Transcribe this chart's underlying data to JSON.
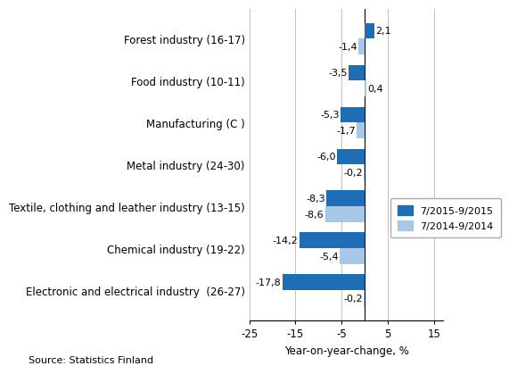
{
  "categories": [
    "Electronic and electrical industry  (26-27)",
    "Chemical industry (19-22)",
    "Textile, clothing and leather industry (13-15)",
    "Metal industry (24-30)",
    "Manufacturing (C )",
    "Food industry (10-11)",
    "Forest industry (16-17)"
  ],
  "series_2015": [
    -17.8,
    -14.2,
    -8.3,
    -6.0,
    -5.3,
    -3.5,
    2.1
  ],
  "series_2014": [
    -0.2,
    -5.4,
    -8.6,
    -0.2,
    -1.7,
    0.4,
    -1.4
  ],
  "labels_2015": [
    "-17,8",
    "-14,2",
    "-8,3",
    "-6,0",
    "-5,3",
    "-3,5",
    "2,1"
  ],
  "labels_2014": [
    "-0,2",
    "-5,4",
    "-8,6",
    "-0,2",
    "-1,7",
    "0,4",
    "-1,4"
  ],
  "color_2015": "#1f6eb5",
  "color_2014": "#a8c8e8",
  "xlabel": "Year-on-year-change, %",
  "legend_2015": "7/2015-9/2015",
  "legend_2014": "7/2014-9/2014",
  "xlim": [
    -25,
    17
  ],
  "xticks": [
    -25,
    -15,
    -5,
    5,
    15
  ],
  "source": "Source: Statistics Finland",
  "bar_height": 0.38,
  "label_fontsize": 8,
  "tick_fontsize": 8.5
}
